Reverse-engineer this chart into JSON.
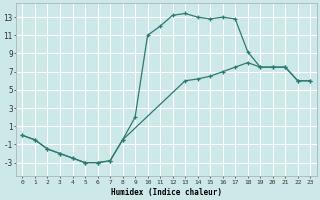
{
  "xlabel": "Humidex (Indice chaleur)",
  "xlim": [
    -0.5,
    23.5
  ],
  "ylim": [
    -4.5,
    14.5
  ],
  "xticks": [
    0,
    1,
    2,
    3,
    4,
    5,
    6,
    7,
    8,
    9,
    10,
    11,
    12,
    13,
    14,
    15,
    16,
    17,
    18,
    19,
    20,
    21,
    22,
    23
  ],
  "yticks": [
    -3,
    -1,
    1,
    3,
    5,
    7,
    9,
    11,
    13
  ],
  "bg_color": "#cde8e8",
  "grid_color": "#ffffff",
  "line_color": "#2d7b6f",
  "line1_x": [
    0,
    1,
    2,
    3,
    4,
    5,
    6,
    7,
    8,
    9,
    10,
    11,
    12,
    13,
    14,
    15,
    16,
    17,
    18,
    19,
    20,
    21,
    22,
    23
  ],
  "line1_y": [
    0,
    -0.5,
    -1.5,
    -2.0,
    -2.5,
    -3.0,
    -3.0,
    -2.8,
    -0.5,
    2.0,
    11.0,
    12.0,
    13.2,
    13.4,
    13.0,
    12.8,
    13.0,
    12.8,
    9.2,
    7.5,
    7.5,
    7.5,
    6.0,
    6.0
  ],
  "line2_x": [
    0,
    1,
    2,
    3,
    4,
    5,
    6,
    7,
    8,
    13,
    14,
    15,
    16,
    17,
    18,
    19,
    20,
    21,
    22,
    23
  ],
  "line2_y": [
    0,
    -0.5,
    -1.5,
    -2.0,
    -2.5,
    -3.0,
    -3.0,
    -2.8,
    -0.5,
    6.0,
    6.2,
    6.5,
    7.0,
    7.5,
    8.0,
    7.5,
    7.5,
    7.5,
    6.0,
    6.0
  ]
}
